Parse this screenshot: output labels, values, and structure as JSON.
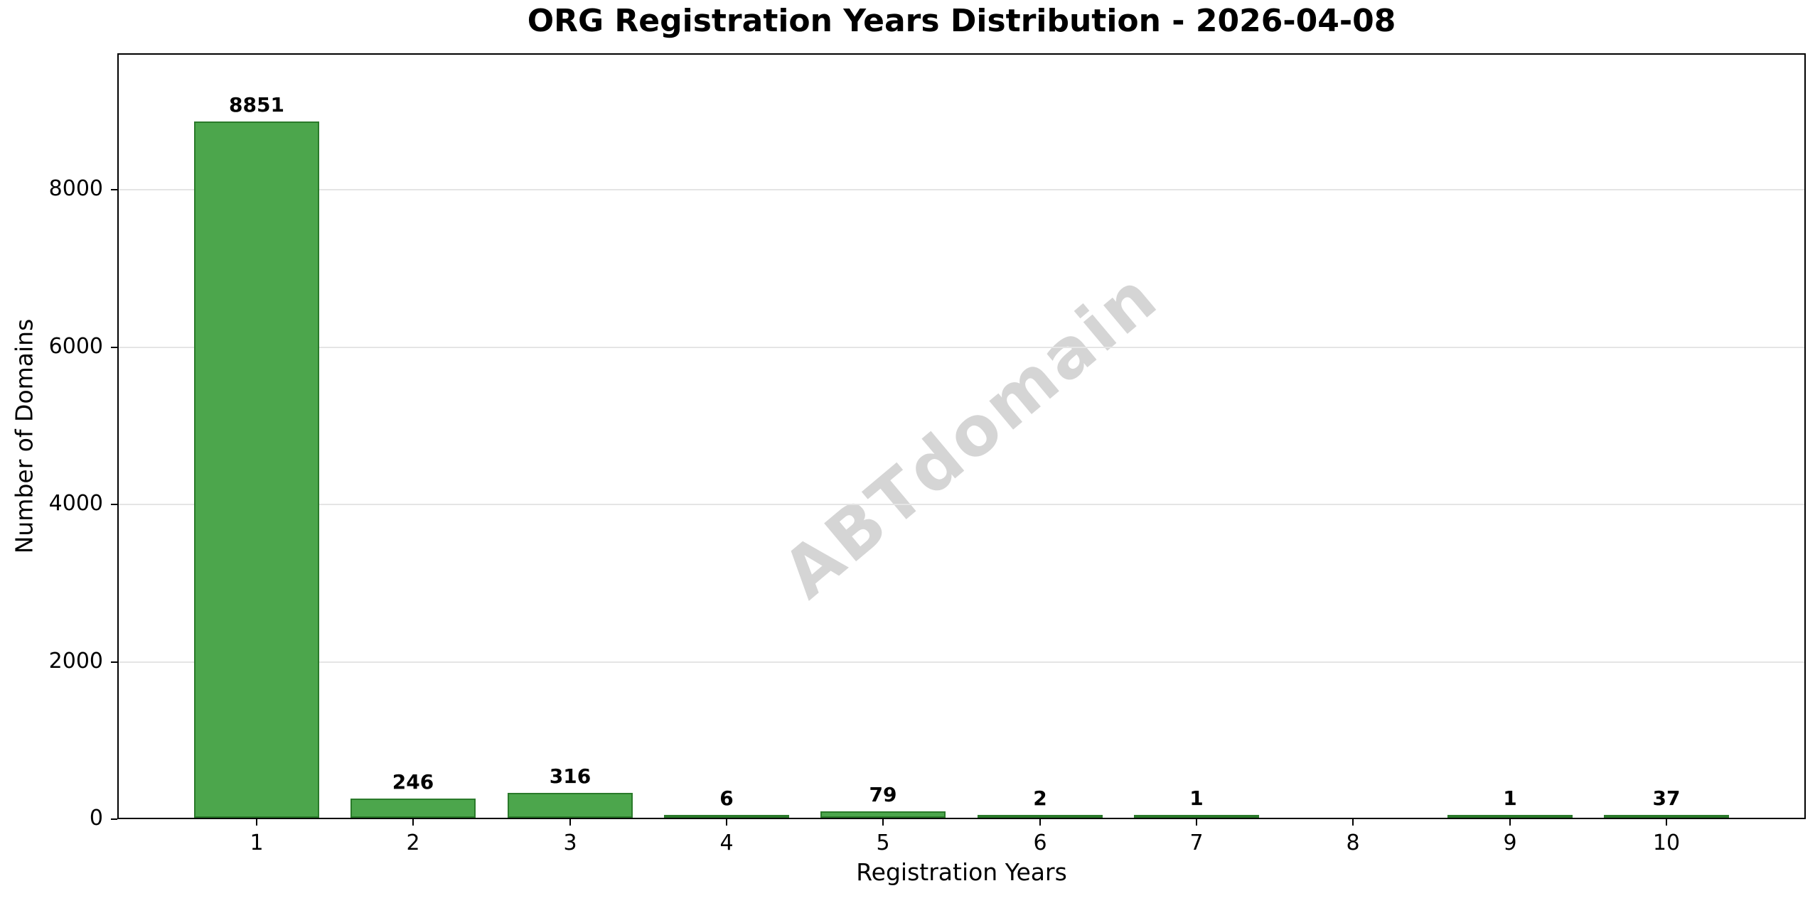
{
  "title": "ORG Registration Years Distribution - 2026-04-08",
  "watermark": "ABTdomain",
  "chart_data": {
    "type": "bar",
    "title": "ORG Registration Years Distribution - 2026-04-08",
    "xlabel": "Registration Years",
    "ylabel": "Number of Domains",
    "categories": [
      "1",
      "2",
      "3",
      "4",
      "5",
      "6",
      "7",
      "8",
      "9",
      "10"
    ],
    "values": [
      8851,
      246,
      316,
      6,
      79,
      2,
      1,
      0,
      1,
      37
    ],
    "bar_value_labels": [
      "8851",
      "246",
      "316",
      "6",
      "79",
      "2",
      "1",
      "",
      "1",
      "37"
    ],
    "yticks": [
      0,
      2000,
      4000,
      6000,
      8000
    ],
    "ytick_labels": [
      "0",
      "2000",
      "4000",
      "6000",
      "8000"
    ],
    "ylim": [
      0,
      9736
    ],
    "grid": "horizontal-light",
    "legend": "none",
    "annotations": [
      "ABTdomain watermark, rotated, center of plot"
    ],
    "colors": {
      "bar_fill": "#4CA64C",
      "bar_edge": "#2A7A2A",
      "grid": "#E5E5E5",
      "axis": "#000000",
      "text": "#000000",
      "watermark": "#D5D5D5"
    }
  }
}
